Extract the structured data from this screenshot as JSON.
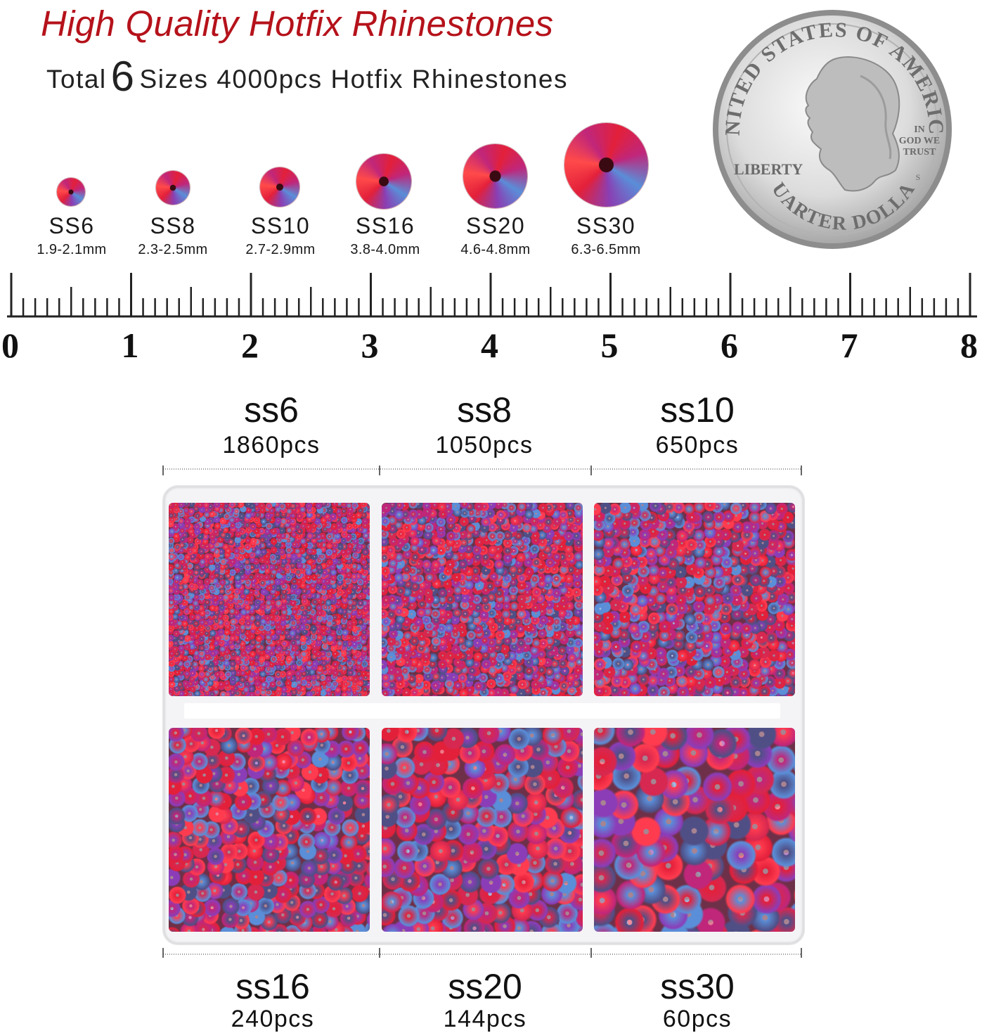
{
  "headline": "High Quality Hotfix Rhinestones",
  "subline": {
    "prefix": "Total",
    "number": "6",
    "suffix": "Sizes 4000pcs Hotfix Rhinestones"
  },
  "size_chart": [
    {
      "code": "SS6",
      "mm": "1.9-2.1mm"
    },
    {
      "code": "SS8",
      "mm": "2.3-2.5mm"
    },
    {
      "code": "SS10",
      "mm": "2.7-2.9mm"
    },
    {
      "code": "SS16",
      "mm": "3.8-4.0mm"
    },
    {
      "code": "SS20",
      "mm": "4.6-4.8mm"
    },
    {
      "code": "SS30",
      "mm": "6.3-6.5mm"
    }
  ],
  "coin": {
    "top_text": "UNITED STATES OF AMERICA",
    "bottom_text": "QUARTER DOLLAR",
    "left_text": "LIBERTY",
    "motto": [
      "IN",
      "GOD WE",
      "TRUST"
    ],
    "mint_mark": "S"
  },
  "ruler": {
    "labels": [
      "0",
      "1",
      "2",
      "3",
      "4",
      "5",
      "6",
      "7",
      "8"
    ]
  },
  "box_top": [
    {
      "code": "ss6",
      "count": "1860pcs"
    },
    {
      "code": "ss8",
      "count": "1050pcs"
    },
    {
      "code": "ss10",
      "count": "650pcs"
    }
  ],
  "box_bottom": [
    {
      "code": "ss16",
      "count": "240pcs"
    },
    {
      "code": "ss20",
      "count": "144pcs"
    },
    {
      "code": "ss30",
      "count": "60pcs"
    }
  ],
  "colors": {
    "headline": "#b5121b",
    "gem_red": "#e3203a",
    "gem_magenta": "#c0267a",
    "gem_blue": "#5a8ed8",
    "gem_back": "#4f4f86"
  }
}
